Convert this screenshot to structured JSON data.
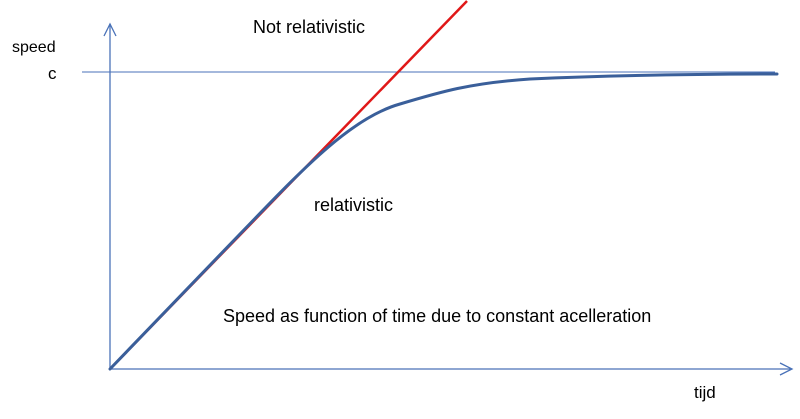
{
  "labels": {
    "y_axis": "speed",
    "c": "c",
    "x_axis": "tijd",
    "not_relativistic": "Not relativistic",
    "relativistic": "relativistic",
    "caption": "Speed as function of time due to constant acelleration"
  },
  "colors": {
    "axis": "#4a72b8",
    "c_line": "#4a72b8",
    "not_relativistic_line": "#e01818",
    "relativistic_curve": "#3a5f9a",
    "text": "#000000"
  }
}
